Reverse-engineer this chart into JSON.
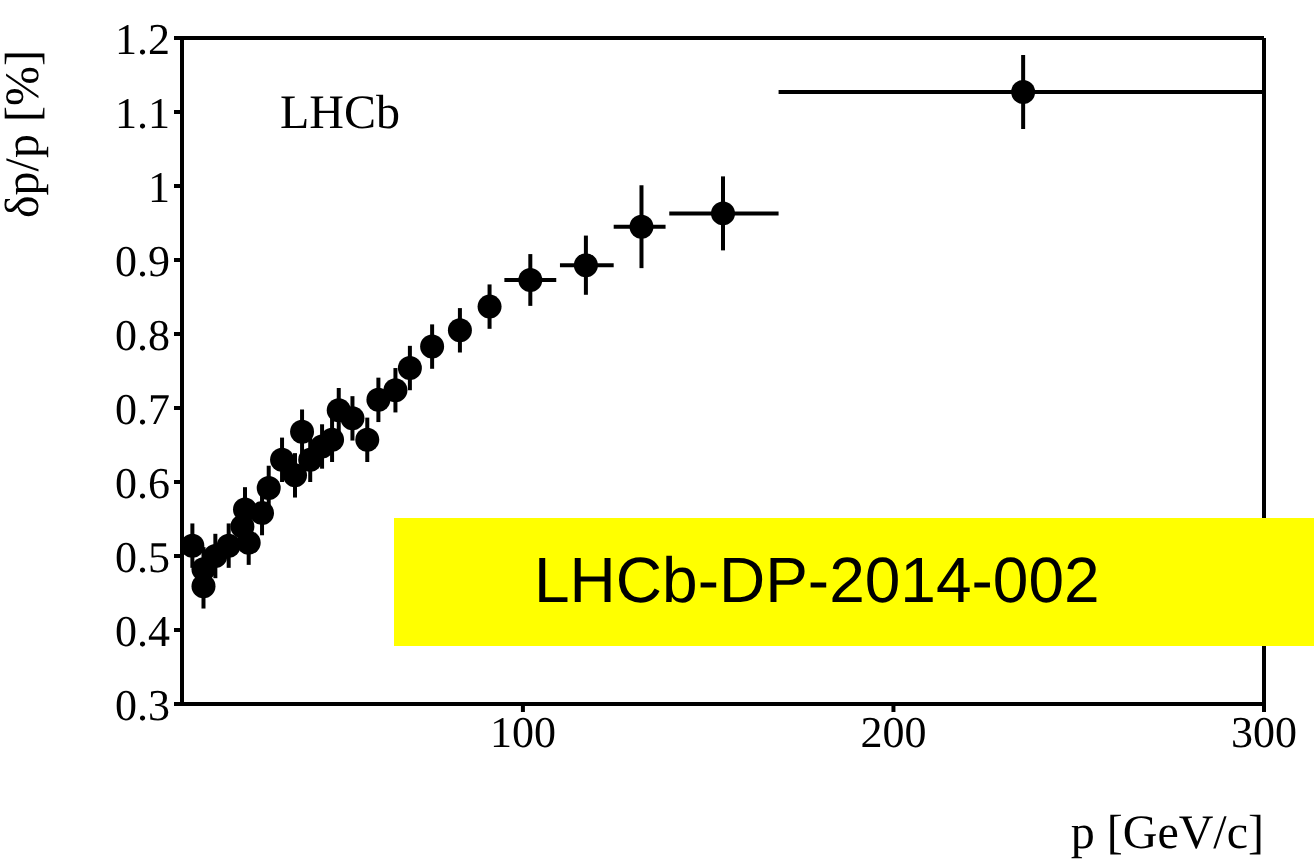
{
  "chart_data": {
    "type": "scatter",
    "xlabel": "p [GeV/c]",
    "ylabel": "δp/p [%]",
    "annotations": [
      "LHCb",
      "LHCb-DP-2014-002"
    ],
    "x": [
      10.8,
      13.8,
      13.8,
      17,
      20.6,
      24.3,
      25,
      26,
      29.6,
      31.4,
      35,
      38.5,
      40.4,
      42.6,
      45.8,
      48.5,
      50.3,
      54,
      58,
      61,
      65.6,
      69.5,
      75.5,
      83,
      91,
      102,
      117,
      132,
      154,
      235
    ],
    "values": [
      0.514,
      0.482,
      0.459,
      0.5,
      0.514,
      0.54,
      0.563,
      0.518,
      0.558,
      0.592,
      0.63,
      0.609,
      0.668,
      0.63,
      0.648,
      0.657,
      0.697,
      0.686,
      0.657,
      0.711,
      0.724,
      0.754,
      0.783,
      0.805,
      0.837,
      0.873,
      0.893,
      0.945,
      0.963,
      1.127
    ],
    "errors": [
      0.03,
      0.03,
      0.03,
      0.03,
      0.03,
      0.03,
      0.03,
      0.03,
      0.03,
      0.03,
      0.03,
      0.03,
      0.03,
      0.03,
      0.03,
      0.03,
      0.03,
      0.03,
      0.03,
      0.03,
      0.03,
      0.03,
      0.03,
      0.03,
      0.03,
      0.035,
      0.04,
      0.056,
      0.05,
      0.05
    ],
    "xerrors": [
      null,
      null,
      null,
      null,
      null,
      null,
      null,
      null,
      null,
      null,
      null,
      null,
      null,
      null,
      null,
      null,
      null,
      null,
      null,
      null,
      null,
      null,
      null,
      null,
      null,
      [
        95,
        109
      ],
      [
        110,
        124.5
      ],
      [
        124.5,
        138.5
      ],
      [
        139.5,
        169
      ],
      [
        169,
        300
      ]
    ],
    "color": "#000000",
    "marker": "circle",
    "xlim": [
      8,
      300
    ],
    "xticks": [
      100,
      200,
      300
    ],
    "ylim": [
      0.3,
      1.2
    ],
    "yticks": [
      0.3,
      0.4,
      0.5,
      0.6,
      0.7,
      0.8,
      0.9,
      1,
      1.1,
      1.2
    ],
    "grid": false,
    "legend": false
  }
}
